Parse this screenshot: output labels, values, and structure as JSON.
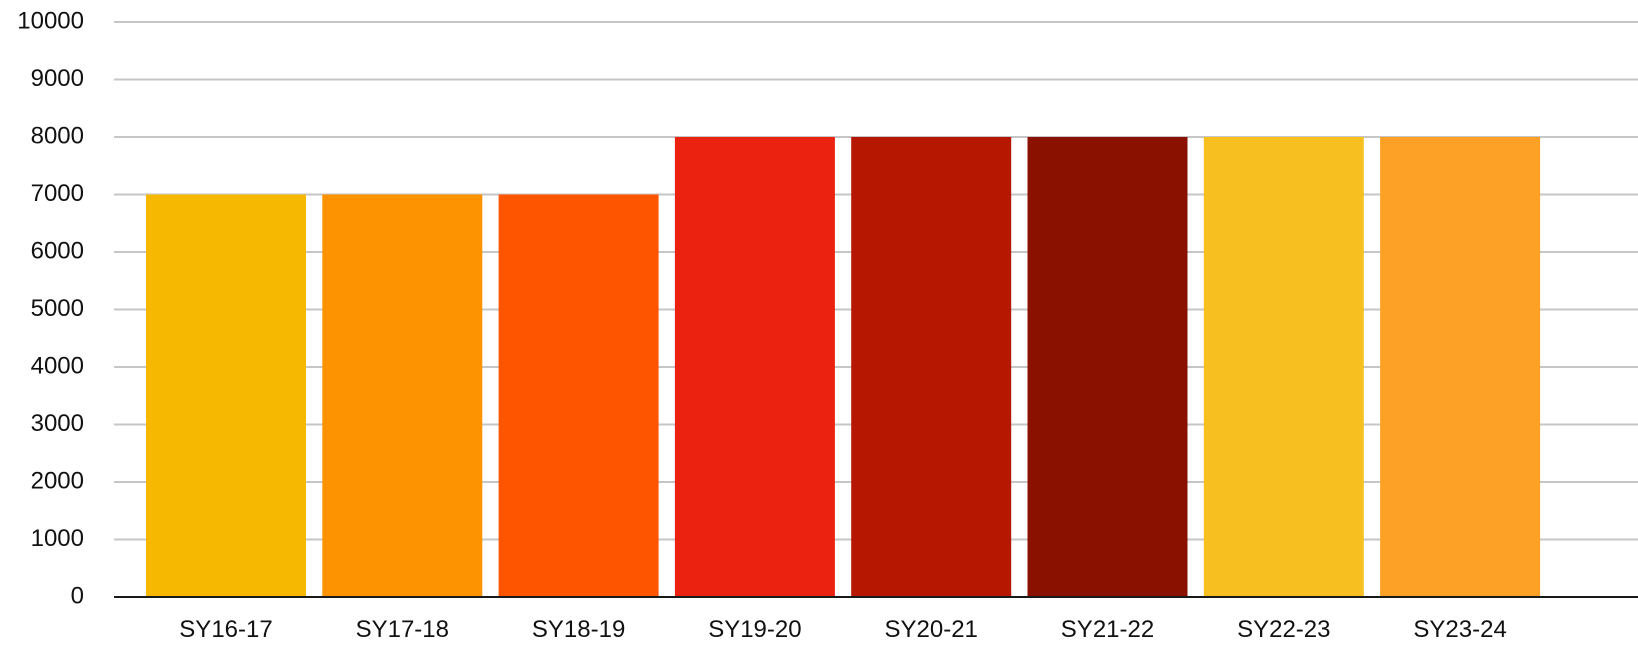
{
  "chart_data": {
    "type": "bar",
    "categories": [
      "SY16-17",
      "SY17-18",
      "SY18-19",
      "SY19-20",
      "SY20-21",
      "SY21-22",
      "SY22-23",
      "SY23-24"
    ],
    "values": [
      7000,
      7000,
      7000,
      8000,
      8000,
      8000,
      8000,
      8000
    ],
    "colors": [
      "#f6b800",
      "#fd9300",
      "#fe5600",
      "#ec2210",
      "#b51700",
      "#8a1000",
      "#f7c020",
      "#fca125"
    ],
    "title": "",
    "xlabel": "",
    "ylabel": "",
    "ylim": [
      0,
      10000
    ],
    "yticks": [
      "0",
      "1000",
      "2000",
      "3000",
      "4000",
      "5000",
      "6000",
      "7000",
      "8000",
      "9000",
      "10000"
    ],
    "grid": true,
    "legend": "none"
  }
}
